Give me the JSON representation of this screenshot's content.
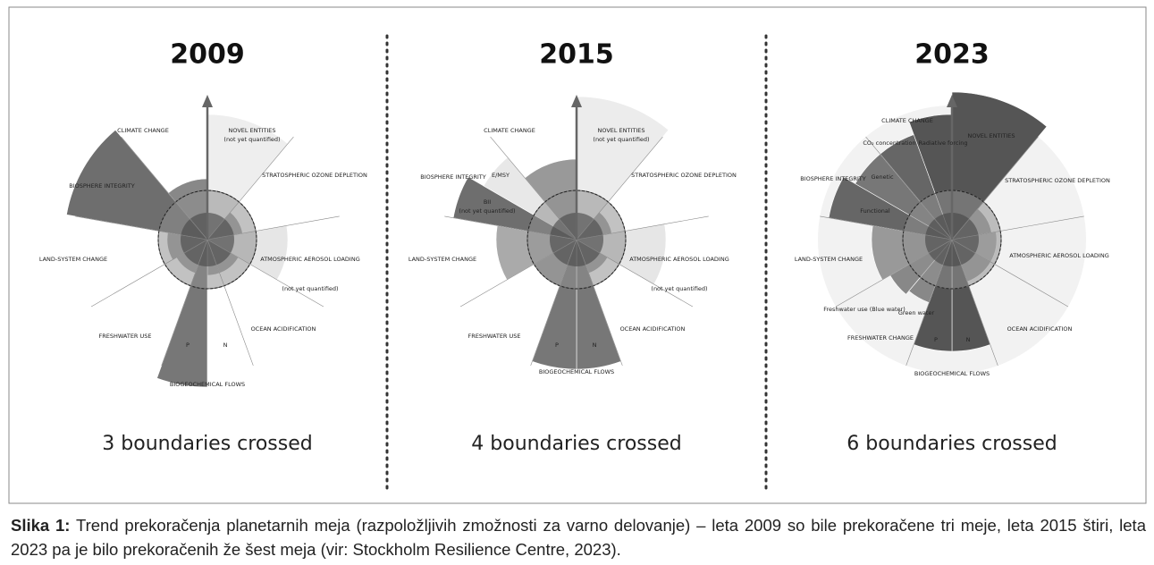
{
  "panels": [
    {
      "year": "2009",
      "summary": "3 boundaries crossed",
      "labels": [
        "CLIMATE CHANGE",
        "NOVEL ENTITIES",
        "(not yet quantified)",
        "STRATOSPHERIC OZONE DEPLETION",
        "ATMOSPHERIC AEROSOL LOADING",
        "(not yet quantified)",
        "OCEAN ACIDIFICATION",
        "BIOGEOCHEMICAL FLOWS",
        "P",
        "N",
        "FRESHWATER USE",
        "LAND-SYSTEM CHANGE",
        "BIOSPHERE INTEGRITY"
      ]
    },
    {
      "year": "2015",
      "summary": "4 boundaries crossed",
      "labels": [
        "CLIMATE CHANGE",
        "NOVEL ENTITIES",
        "(not yet quantified)",
        "STRATOSPHERIC OZONE DEPLETION",
        "ATMOSPHERIC AEROSOL LOADING",
        "(not yet quantified)",
        "OCEAN ACIDIFICATION",
        "BIOGEOCHEMICAL FLOWS",
        "P",
        "N",
        "FRESHWATER USE",
        "LAND-SYSTEM CHANGE",
        "BIOSPHERE INTEGRITY",
        "E/MSY",
        "BII",
        "(not yet quantified)"
      ]
    },
    {
      "year": "2023",
      "summary": "6 boundaries crossed",
      "labels": [
        "CLIMATE CHANGE",
        "NOVEL ENTITIES",
        "CO₂ concentration",
        "Radiative forcing",
        "STRATOSPHERIC OZONE DEPLETION",
        "ATMOSPHERIC AEROSOL LOADING",
        "OCEAN ACIDIFICATION",
        "BIOGEOCHEMICAL FLOWS",
        "P",
        "N",
        "FRESHWATER CHANGE",
        "Freshwater use (Blue water)",
        "Green water",
        "LAND-SYSTEM CHANGE",
        "BIOSPHERE INTEGRITY",
        "Genetic",
        "Functional"
      ]
    }
  ],
  "caption": {
    "label": "Slika 1:",
    "text": "Trend prekoračenja planetarnih meja (razpoložljivih zmožnosti za varno delovanje) – leta 2009 so bile prekoračene tri meje, leta 2015 štiri, leta 2023 pa je bilo prekoračenih že šest meja (vir: Stockholm Resilience Centre, 2023)."
  }
}
